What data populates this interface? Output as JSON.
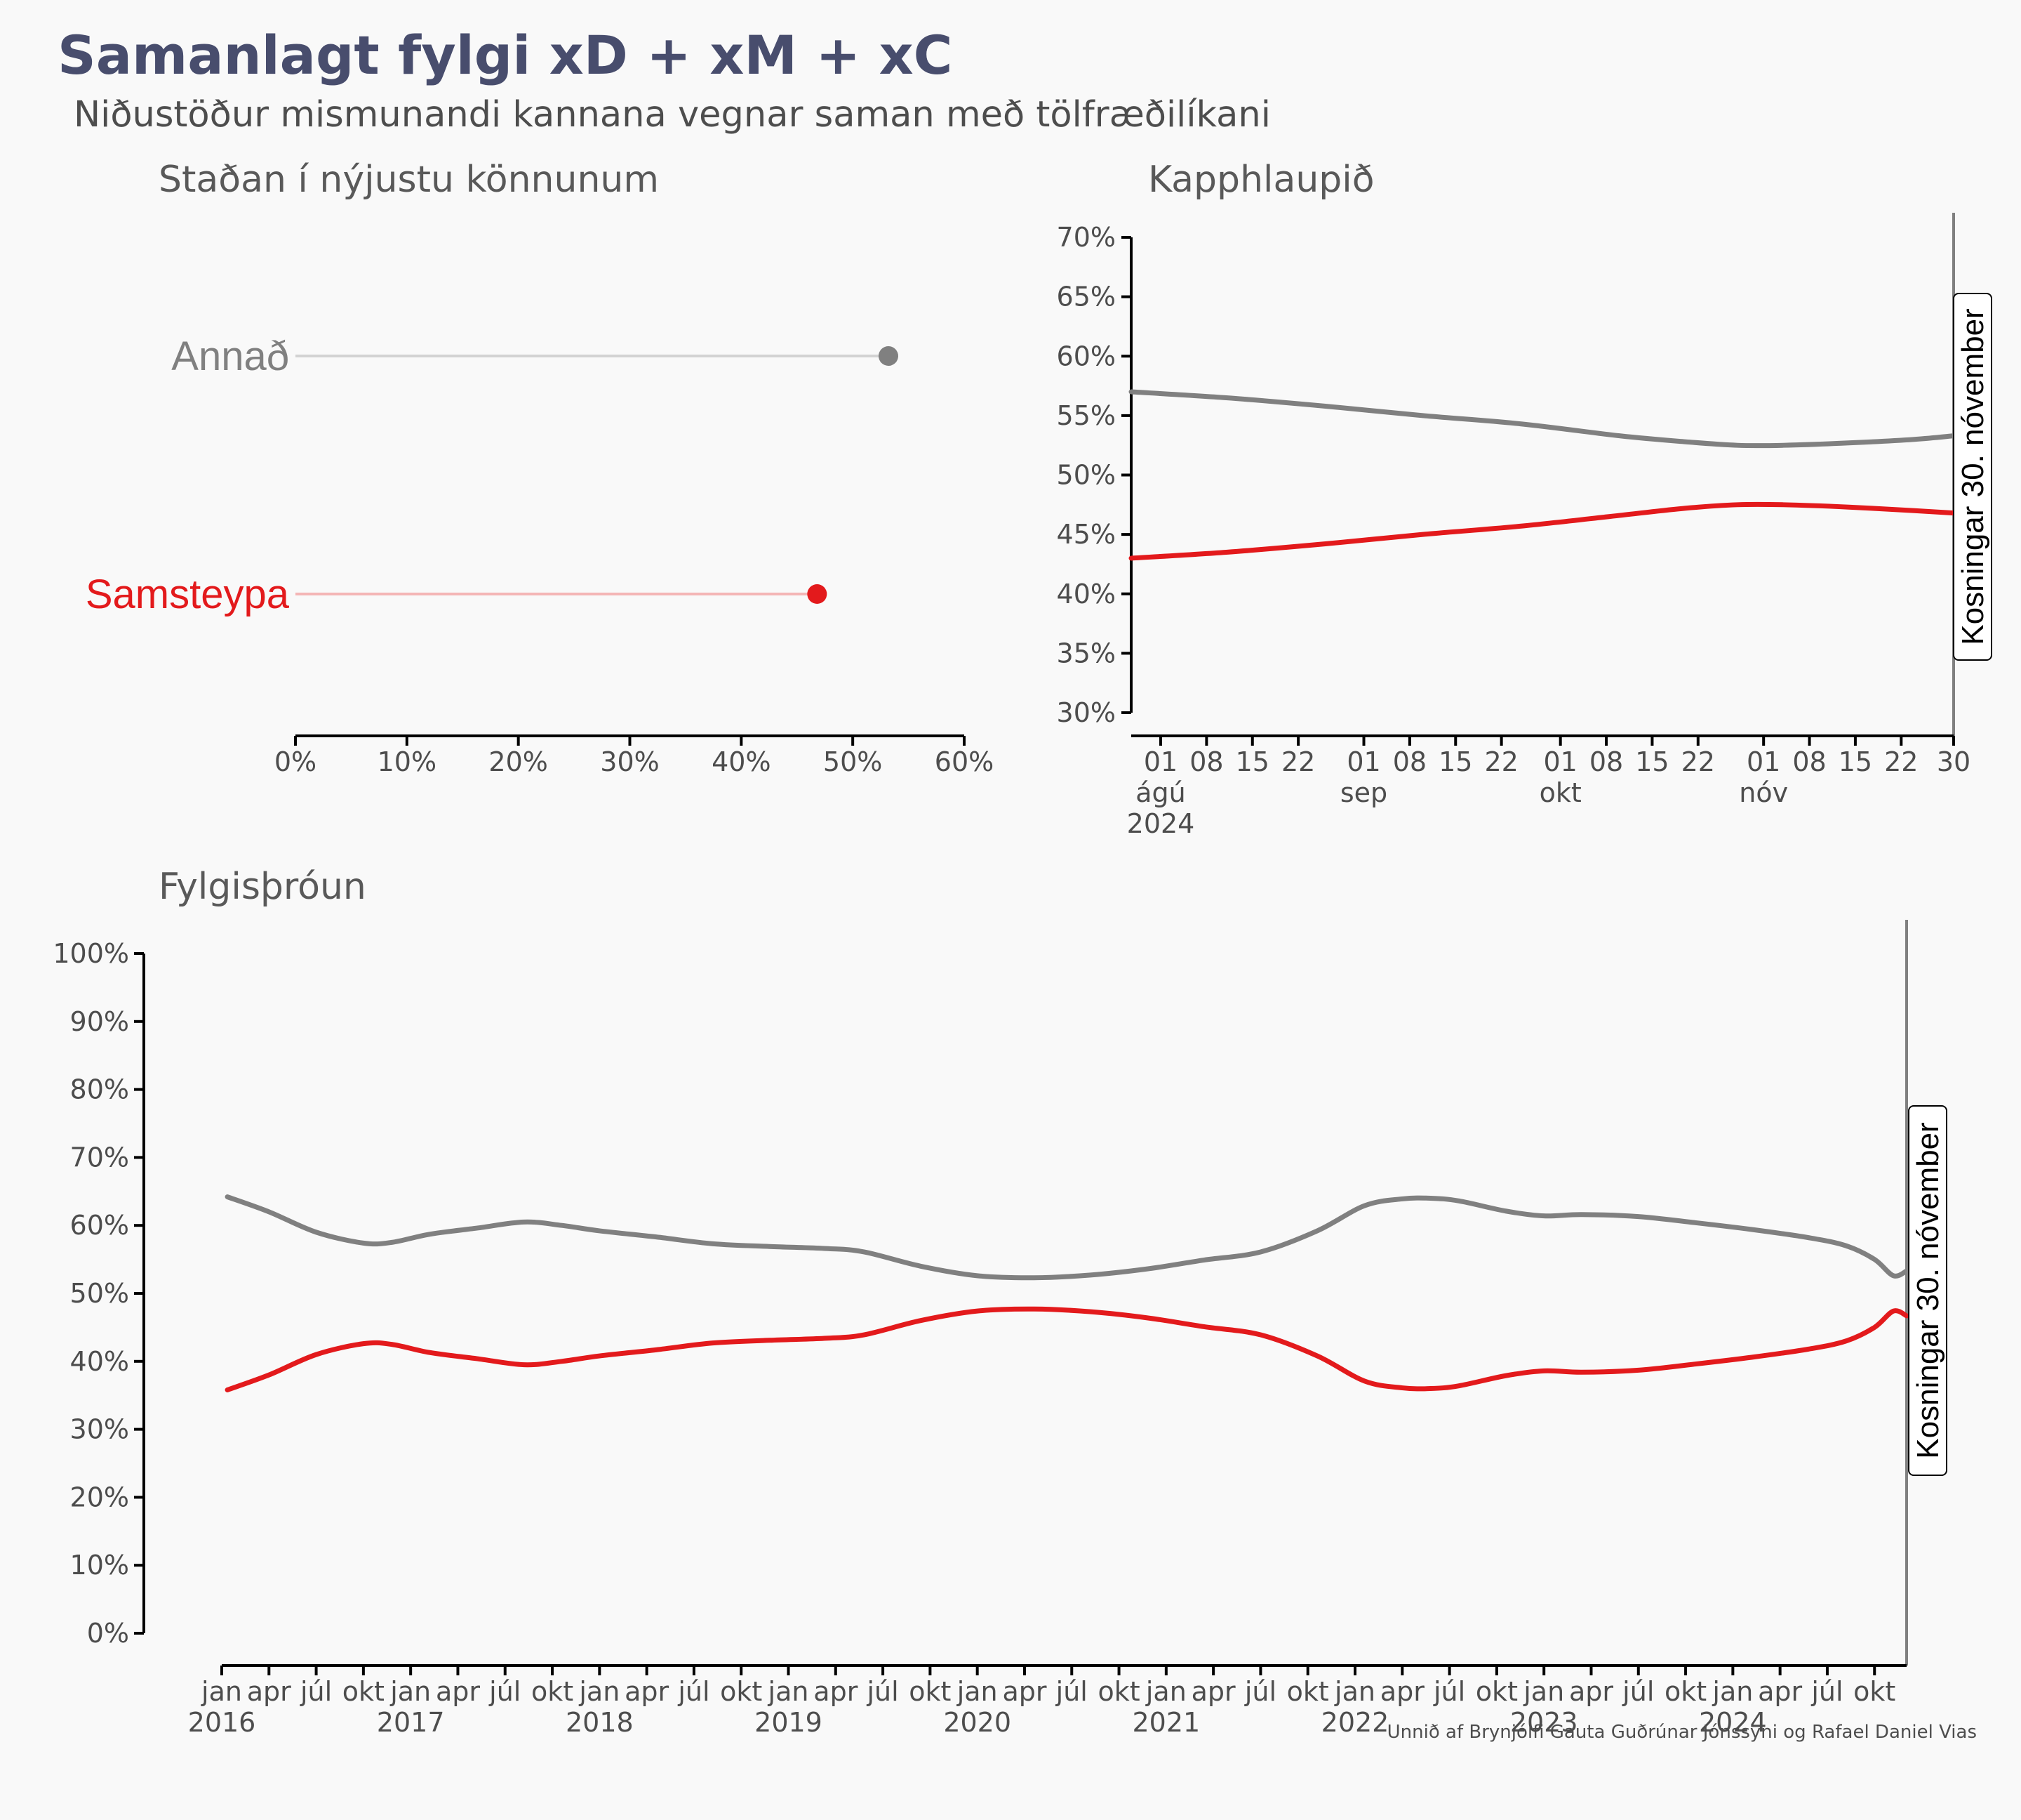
{
  "title": "Samanlagt fylgi xD + xM + xC",
  "subtitle": "Niðustöður mismunandi kannana vegnar saman með tölfræðilíkani",
  "caption": "Unnið af Brynjólfi Gauta Guðrúnar Jónssyni og Rafael Daniel Vias",
  "colors": {
    "annad": "#808080",
    "samsteypa": "#e31a1c",
    "annad_light": "#d3d3d3",
    "samsteypa_light": "#f4b6b6",
    "title": "#484d6d"
  },
  "chart_data": [
    {
      "id": "status",
      "type": "dot",
      "title": "Staðan í nýjustu könnunum",
      "categories": [
        "Annað",
        "Samsteypa"
      ],
      "values": [
        53.2,
        46.8
      ],
      "xlim": [
        0,
        60
      ],
      "x_ticks": [
        "0%",
        "10%",
        "20%",
        "30%",
        "40%",
        "50%",
        "60%"
      ]
    },
    {
      "id": "race",
      "type": "line",
      "title": "Kapphlaupið",
      "x_unit": "days since 2024-08-01",
      "xlim": [
        -4.5,
        121
      ],
      "ylim": [
        30,
        70
      ],
      "y_ticks": [
        "70%",
        "65%",
        "60%",
        "55%",
        "50%",
        "45%",
        "40%",
        "35%",
        "30%"
      ],
      "x_day_ticks": [
        {
          "d": 0,
          "label": "01"
        },
        {
          "d": 7,
          "label": "08"
        },
        {
          "d": 14,
          "label": "15"
        },
        {
          "d": 21,
          "label": "22"
        },
        {
          "d": 31,
          "label": "01"
        },
        {
          "d": 38,
          "label": "08"
        },
        {
          "d": 45,
          "label": "15"
        },
        {
          "d": 52,
          "label": "22"
        },
        {
          "d": 61,
          "label": "01"
        },
        {
          "d": 68,
          "label": "08"
        },
        {
          "d": 75,
          "label": "15"
        },
        {
          "d": 82,
          "label": "22"
        },
        {
          "d": 92,
          "label": "01"
        },
        {
          "d": 99,
          "label": "08"
        },
        {
          "d": 106,
          "label": "15"
        },
        {
          "d": 113,
          "label": "22"
        },
        {
          "d": 121,
          "label": "30"
        }
      ],
      "x_month_labels": [
        {
          "d": 0,
          "label": "ágú"
        },
        {
          "d": 31,
          "label": "sep"
        },
        {
          "d": 61,
          "label": "okt"
        },
        {
          "d": 92,
          "label": "nóv"
        }
      ],
      "x_year_label": {
        "d": 0,
        "label": "2024"
      },
      "series": [
        {
          "name": "Annað",
          "x": [
            -4.5,
            10,
            25,
            40,
            55,
            70,
            80,
            88,
            95,
            105,
            115,
            121
          ],
          "y": [
            57.0,
            56.5,
            55.8,
            55.0,
            54.3,
            53.3,
            52.8,
            52.5,
            52.5,
            52.7,
            53.0,
            53.3
          ]
        },
        {
          "name": "Samsteypa",
          "x": [
            -4.5,
            10,
            25,
            40,
            55,
            70,
            80,
            88,
            95,
            105,
            115,
            121
          ],
          "y": [
            43.0,
            43.5,
            44.2,
            45.0,
            45.7,
            46.6,
            47.2,
            47.5,
            47.5,
            47.3,
            47.0,
            46.8
          ]
        }
      ],
      "annotation": "Kosningar 30. nóvember"
    },
    {
      "id": "trend",
      "type": "line",
      "title": "Fylgisþróun",
      "x_unit": "years",
      "xlim": [
        2016,
        2024.92
      ],
      "ylim": [
        0,
        100
      ],
      "y_ticks": [
        "100%",
        "90%",
        "80%",
        "70%",
        "60%",
        "50%",
        "40%",
        "30%",
        "20%",
        "10%",
        "0%"
      ],
      "month_ticks": [
        "jan",
        "apr",
        "júl",
        "okt"
      ],
      "years": [
        "2016",
        "2017",
        "2018",
        "2019",
        "2020",
        "2021",
        "2022",
        "2023",
        "2024"
      ],
      "series": [
        {
          "name": "Annað",
          "x": [
            2016.03,
            2016.25,
            2016.5,
            2016.75,
            2016.9,
            2017.1,
            2017.35,
            2017.6,
            2017.8,
            2018.0,
            2018.3,
            2018.6,
            2018.9,
            2019.2,
            2019.4,
            2019.7,
            2020.0,
            2020.3,
            2020.6,
            2020.9,
            2021.2,
            2021.5,
            2021.8,
            2022.05,
            2022.25,
            2022.4,
            2022.55,
            2022.8,
            2023.0,
            2023.2,
            2023.5,
            2023.8,
            2024.1,
            2024.4,
            2024.6,
            2024.75,
            2024.85,
            2024.92
          ],
          "y": [
            64.2,
            62.0,
            59.0,
            57.4,
            57.5,
            58.7,
            59.6,
            60.5,
            60.0,
            59.2,
            58.3,
            57.3,
            56.9,
            56.6,
            56.1,
            54.0,
            52.6,
            52.3,
            52.7,
            53.6,
            54.9,
            56.1,
            59.2,
            62.9,
            63.9,
            64.0,
            63.6,
            62.1,
            61.4,
            61.6,
            61.3,
            60.4,
            59.4,
            58.2,
            57.0,
            55.0,
            52.6,
            53.3
          ]
        },
        {
          "name": "Samsteypa",
          "x": [
            2016.03,
            2016.25,
            2016.5,
            2016.75,
            2016.9,
            2017.1,
            2017.35,
            2017.6,
            2017.8,
            2018.0,
            2018.3,
            2018.6,
            2018.9,
            2019.2,
            2019.4,
            2019.7,
            2020.0,
            2020.3,
            2020.6,
            2020.9,
            2021.2,
            2021.5,
            2021.8,
            2022.05,
            2022.25,
            2022.4,
            2022.55,
            2022.8,
            2023.0,
            2023.2,
            2023.5,
            2023.8,
            2024.1,
            2024.4,
            2024.6,
            2024.75,
            2024.85,
            2024.92
          ],
          "y": [
            35.8,
            38.0,
            41.0,
            42.6,
            42.5,
            41.3,
            40.4,
            39.5,
            40.0,
            40.8,
            41.7,
            42.7,
            43.1,
            43.4,
            43.9,
            46.0,
            47.4,
            47.7,
            47.3,
            46.4,
            45.1,
            43.9,
            40.8,
            37.1,
            36.1,
            36.0,
            36.4,
            37.9,
            38.6,
            38.4,
            38.7,
            39.6,
            40.6,
            41.8,
            43.0,
            45.0,
            47.4,
            46.7
          ]
        }
      ],
      "annotation": "Kosningar 30. nóvember"
    }
  ]
}
